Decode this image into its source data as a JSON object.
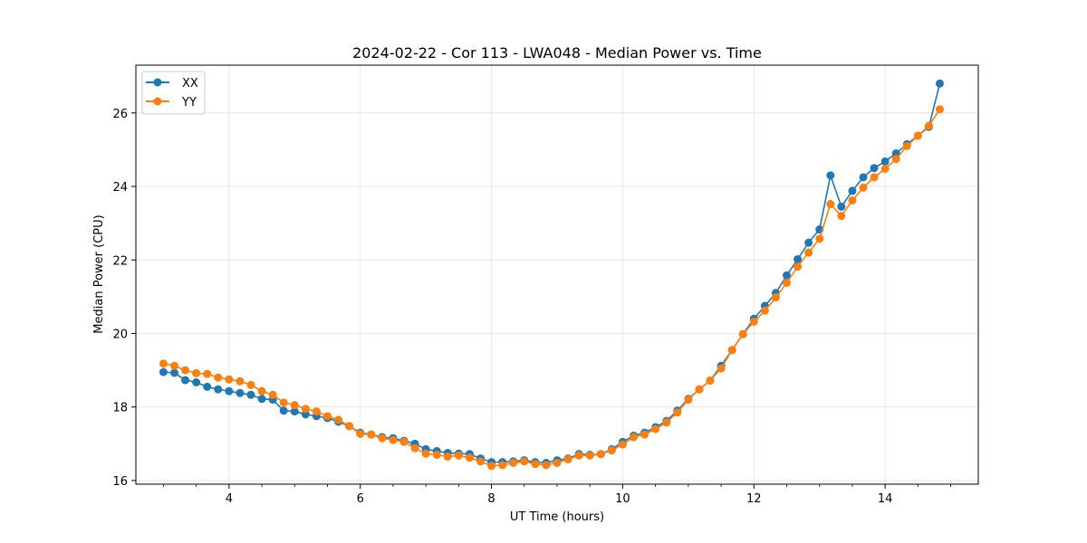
{
  "chart_data": {
    "type": "line",
    "title": "2024-02-22 - Cor 113 - LWA048 - Median Power vs. Time",
    "xlabel": "UT Time (hours)",
    "ylabel": "Median Power (CPU)",
    "xlim": [
      2.58,
      15.42
    ],
    "ylim": [
      15.9,
      27.3
    ],
    "x_ticks": [
      4,
      6,
      8,
      10,
      12,
      14
    ],
    "x_tick_labels": [
      "4",
      "6",
      "8",
      "10",
      "12",
      "14"
    ],
    "x_minor_ticks": [
      2.5,
      3,
      3.5,
      4.5,
      5,
      5.5,
      6.5,
      7,
      7.5,
      8.5,
      9,
      9.5,
      10.5,
      11,
      11.5,
      12.5,
      13,
      13.5,
      14.5,
      15
    ],
    "y_ticks": [
      16,
      18,
      20,
      22,
      24,
      26
    ],
    "y_tick_labels": [
      "16",
      "18",
      "20",
      "22",
      "24",
      "26"
    ],
    "grid": true,
    "legend_position": "top-left",
    "x": [
      3.0,
      3.167,
      3.333,
      3.5,
      3.667,
      3.833,
      4.0,
      4.167,
      4.333,
      4.5,
      4.667,
      4.833,
      5.0,
      5.167,
      5.333,
      5.5,
      5.667,
      5.833,
      6.0,
      6.167,
      6.333,
      6.5,
      6.667,
      6.833,
      7.0,
      7.167,
      7.333,
      7.5,
      7.667,
      7.833,
      8.0,
      8.167,
      8.333,
      8.5,
      8.667,
      8.833,
      9.0,
      9.167,
      9.333,
      9.5,
      9.667,
      9.833,
      10.0,
      10.167,
      10.333,
      10.5,
      10.667,
      10.833,
      11.0,
      11.167,
      11.333,
      11.5,
      11.667,
      11.833,
      12.0,
      12.167,
      12.333,
      12.5,
      12.667,
      12.833,
      13.0,
      13.167,
      13.333,
      13.5,
      13.667,
      13.833,
      14.0,
      14.167,
      14.333,
      14.5,
      14.667,
      14.833
    ],
    "series": [
      {
        "name": "XX",
        "color": "#1f77b4",
        "values": [
          18.95,
          18.93,
          18.73,
          18.67,
          18.55,
          18.48,
          18.43,
          18.38,
          18.33,
          18.22,
          18.2,
          17.9,
          17.88,
          17.8,
          17.75,
          17.7,
          17.6,
          17.48,
          17.3,
          17.25,
          17.18,
          17.15,
          17.08,
          17.0,
          16.85,
          16.8,
          16.75,
          16.73,
          16.72,
          16.6,
          16.5,
          16.5,
          16.52,
          16.55,
          16.5,
          16.48,
          16.55,
          16.6,
          16.72,
          16.7,
          16.72,
          16.85,
          17.05,
          17.22,
          17.3,
          17.45,
          17.62,
          17.9,
          18.22,
          18.48,
          18.72,
          19.12,
          19.55,
          19.98,
          20.4,
          20.75,
          21.1,
          21.58,
          22.02,
          22.47,
          22.83,
          24.3,
          23.45,
          23.88,
          24.25,
          24.5,
          24.68,
          24.9,
          25.15,
          25.38,
          25.62,
          26.8
        ]
      },
      {
        "name": "YY",
        "color": "#ff7f0e",
        "values": [
          19.18,
          19.12,
          19.0,
          18.92,
          18.9,
          18.8,
          18.75,
          18.7,
          18.6,
          18.43,
          18.33,
          18.12,
          18.05,
          17.95,
          17.88,
          17.75,
          17.65,
          17.48,
          17.27,
          17.25,
          17.15,
          17.1,
          17.05,
          16.88,
          16.73,
          16.7,
          16.65,
          16.68,
          16.62,
          16.52,
          16.4,
          16.42,
          16.48,
          16.52,
          16.45,
          16.42,
          16.48,
          16.58,
          16.68,
          16.68,
          16.72,
          16.82,
          16.98,
          17.18,
          17.25,
          17.4,
          17.58,
          17.85,
          18.2,
          18.48,
          18.72,
          19.05,
          19.55,
          19.98,
          20.32,
          20.62,
          20.98,
          21.38,
          21.82,
          22.2,
          22.58,
          23.52,
          23.2,
          23.62,
          23.97,
          24.25,
          24.48,
          24.75,
          25.1,
          25.38,
          25.65,
          26.1
        ]
      }
    ]
  }
}
